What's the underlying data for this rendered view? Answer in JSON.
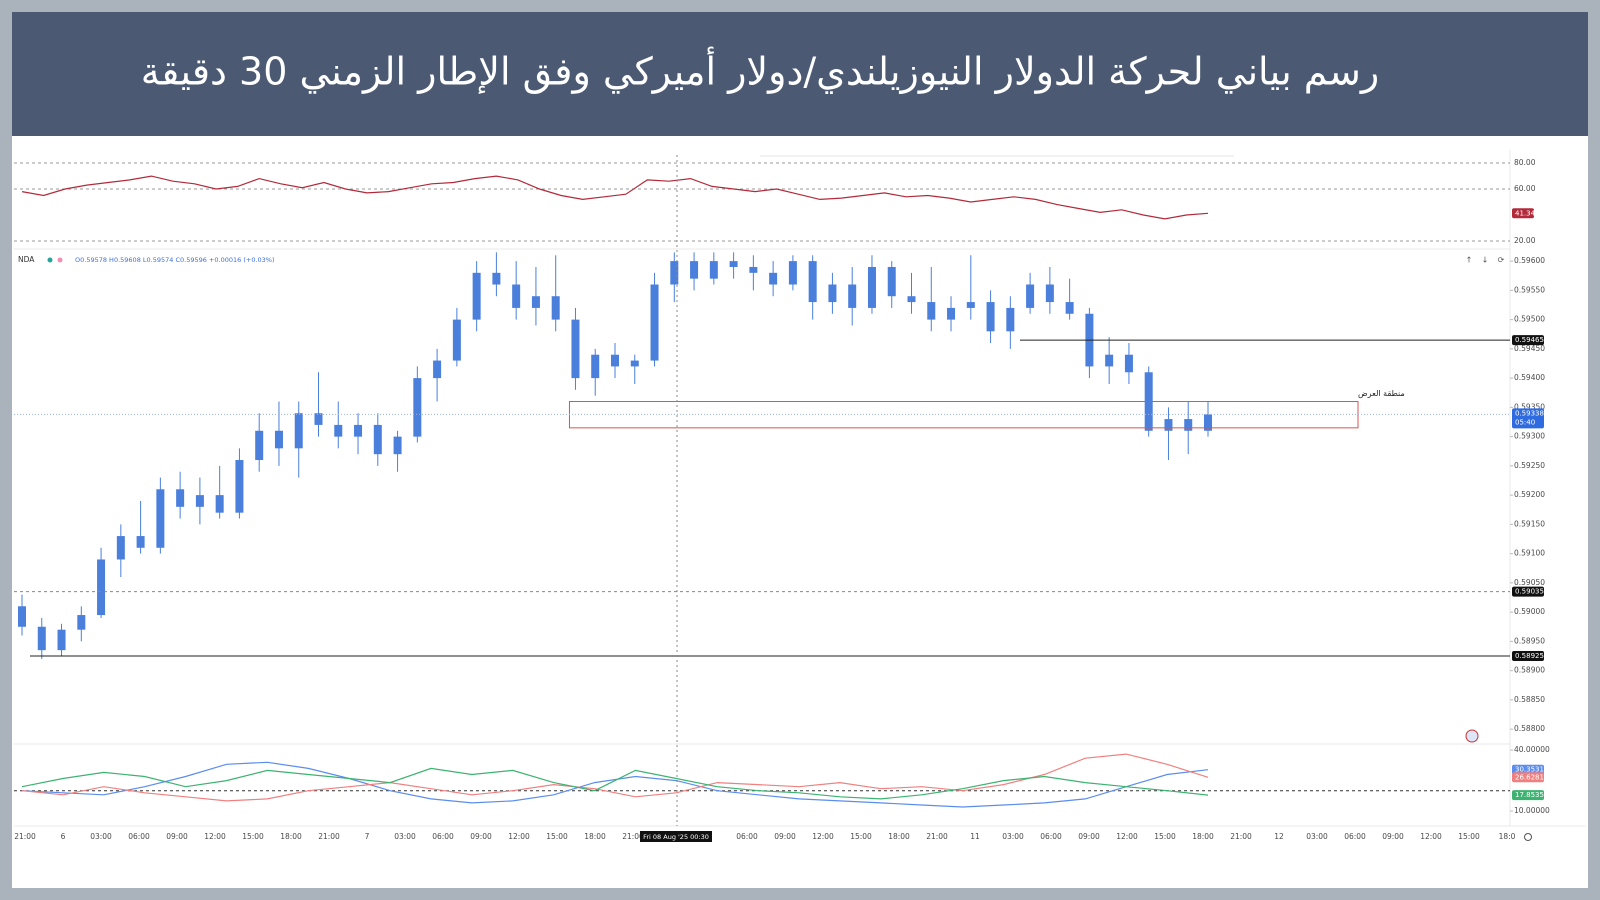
{
  "chart_data": {
    "type": "candlestick",
    "title": "رسم بياني لحركة الدولار النيوزيلندي/دولار أميركي وفق الإطار الزمني 30 دقيقة",
    "symbol": "NDA",
    "ohlc_legend": "O0.59578 H0.59608 L0.59574 C0.59596 +0.00016 (+0.03%)",
    "color": "#4a7fdc",
    "candles": [
      [
        0.5901,
        0.5903,
        0.5896,
        0.58975
      ],
      [
        0.58975,
        0.5899,
        0.5892,
        0.58935
      ],
      [
        0.58935,
        0.5898,
        0.58925,
        0.5897
      ],
      [
        0.5897,
        0.5901,
        0.5895,
        0.58995
      ],
      [
        0.58995,
        0.5911,
        0.5899,
        0.5909
      ],
      [
        0.5909,
        0.5915,
        0.5906,
        0.5913
      ],
      [
        0.5913,
        0.5919,
        0.591,
        0.5911
      ],
      [
        0.5911,
        0.5923,
        0.591,
        0.5921
      ],
      [
        0.5921,
        0.5924,
        0.5916,
        0.5918
      ],
      [
        0.5918,
        0.5923,
        0.5915,
        0.592
      ],
      [
        0.592,
        0.5925,
        0.5916,
        0.5917
      ],
      [
        0.5917,
        0.5928,
        0.5916,
        0.5926
      ],
      [
        0.5926,
        0.5934,
        0.5924,
        0.5931
      ],
      [
        0.5931,
        0.5936,
        0.5925,
        0.5928
      ],
      [
        0.5928,
        0.5936,
        0.5923,
        0.5934
      ],
      [
        0.5934,
        0.5941,
        0.593,
        0.5932
      ],
      [
        0.5932,
        0.5936,
        0.5928,
        0.593
      ],
      [
        0.593,
        0.5934,
        0.5927,
        0.5932
      ],
      [
        0.5932,
        0.5934,
        0.5925,
        0.5927
      ],
      [
        0.5927,
        0.5931,
        0.5924,
        0.593
      ],
      [
        0.593,
        0.5942,
        0.5929,
        0.594
      ],
      [
        0.594,
        0.5945,
        0.5936,
        0.5943
      ],
      [
        0.5943,
        0.5952,
        0.5942,
        0.595
      ],
      [
        0.595,
        0.596,
        0.5948,
        0.5958
      ],
      [
        0.5958,
        0.59615,
        0.5954,
        0.5956
      ],
      [
        0.5956,
        0.596,
        0.595,
        0.5952
      ],
      [
        0.5952,
        0.5959,
        0.5949,
        0.5954
      ],
      [
        0.5954,
        0.5961,
        0.5948,
        0.595
      ],
      [
        0.595,
        0.5952,
        0.5938,
        0.594
      ],
      [
        0.594,
        0.5945,
        0.5937,
        0.5944
      ],
      [
        0.5944,
        0.5946,
        0.594,
        0.5942
      ],
      [
        0.5942,
        0.5944,
        0.5939,
        0.5943
      ],
      [
        0.5943,
        0.5958,
        0.5942,
        0.5956
      ],
      [
        0.5956,
        0.59615,
        0.5953,
        0.596
      ],
      [
        0.596,
        0.59615,
        0.5955,
        0.5957
      ],
      [
        0.5957,
        0.59615,
        0.5956,
        0.596
      ],
      [
        0.596,
        0.59615,
        0.5957,
        0.5959
      ],
      [
        0.5959,
        0.5961,
        0.5955,
        0.5958
      ],
      [
        0.5958,
        0.596,
        0.5954,
        0.5956
      ],
      [
        0.5956,
        0.5961,
        0.5955,
        0.596
      ],
      [
        0.596,
        0.5961,
        0.595,
        0.5953
      ],
      [
        0.5953,
        0.5958,
        0.5951,
        0.5956
      ],
      [
        0.5956,
        0.5959,
        0.5949,
        0.5952
      ],
      [
        0.5952,
        0.5961,
        0.5951,
        0.5959
      ],
      [
        0.5959,
        0.596,
        0.5952,
        0.5954
      ],
      [
        0.5954,
        0.5958,
        0.5951,
        0.5953
      ],
      [
        0.5953,
        0.5959,
        0.5948,
        0.595
      ],
      [
        0.595,
        0.5954,
        0.5948,
        0.5952
      ],
      [
        0.5952,
        0.5961,
        0.595,
        0.5953
      ],
      [
        0.5953,
        0.5955,
        0.5946,
        0.5948
      ],
      [
        0.5948,
        0.5954,
        0.5945,
        0.5952
      ],
      [
        0.5952,
        0.5958,
        0.5951,
        0.5956
      ],
      [
        0.5956,
        0.5959,
        0.5951,
        0.5953
      ],
      [
        0.5953,
        0.5957,
        0.595,
        0.5951
      ],
      [
        0.5951,
        0.5952,
        0.594,
        0.5942
      ],
      [
        0.5942,
        0.5947,
        0.5939,
        0.5944
      ],
      [
        0.5944,
        0.5946,
        0.5939,
        0.5941
      ],
      [
        0.5941,
        0.5942,
        0.593,
        0.5931
      ],
      [
        0.5931,
        0.5935,
        0.5926,
        0.5933
      ],
      [
        0.5933,
        0.5936,
        0.5927,
        0.5931
      ],
      [
        0.5931,
        0.5936,
        0.593,
        0.59338
      ]
    ],
    "ylim": [
      0.58778,
      0.59619
    ],
    "yticks": [
      {
        "value": 0.596,
        "label": "0.59600"
      },
      {
        "value": 0.5955,
        "label": "0.59550"
      },
      {
        "value": 0.595,
        "label": "0.59500"
      },
      {
        "value": 0.5945,
        "label": "0.59450"
      },
      {
        "value": 0.594,
        "label": "0.59400"
      },
      {
        "value": 0.5935,
        "label": "0.59350"
      },
      {
        "value": 0.593,
        "label": "0.59300"
      },
      {
        "value": 0.5925,
        "label": "0.59250"
      },
      {
        "value": 0.592,
        "label": "0.59200"
      },
      {
        "value": 0.5915,
        "label": "0.59150"
      },
      {
        "value": 0.591,
        "label": "0.59100"
      },
      {
        "value": 0.5905,
        "label": "0.59050"
      },
      {
        "value": 0.59,
        "label": "0.59000"
      },
      {
        "value": 0.5895,
        "label": "0.58950"
      },
      {
        "value": 0.589,
        "label": "0.58900"
      },
      {
        "value": 0.5885,
        "label": "0.58850"
      },
      {
        "value": 0.588,
        "label": "0.58800"
      }
    ],
    "levels": [
      {
        "value": 0.59465,
        "style": "solid"
      },
      {
        "value": 0.59035,
        "style": "dashed"
      },
      {
        "value": 0.58925,
        "style": "solid"
      }
    ],
    "zone": {
      "top": 0.5936,
      "bottom": 0.59315,
      "label": "منطقة العرض",
      "color": "#d9534f"
    },
    "current_price": 0.59338,
    "countdown": "05:40",
    "xticks": [
      "21:00",
      "6",
      "03:00",
      "06:00",
      "09:00",
      "12:00",
      "15:00",
      "18:00",
      "21:00",
      "7",
      "03:00",
      "06:00",
      "09:00",
      "12:00",
      "15:00",
      "18:00",
      "21:00",
      null,
      null,
      "06:00",
      "09:00",
      "12:00",
      "15:00",
      "18:00",
      "21:00",
      "11",
      "03:00",
      "06:00",
      "09:00",
      "12:00",
      "15:00",
      "18:00",
      "21:00",
      "12",
      "03:00",
      "06:00",
      "09:00",
      "12:00",
      "15:00",
      "18:0"
    ],
    "crosshair_label": "Fri 08 Aug '25   00:30",
    "rsi": {
      "color": "#b22a3a",
      "ylim": [
        15.4,
        86.2
      ],
      "yticks": [
        {
          "value": 80,
          "label": "80.00"
        },
        {
          "value": 60,
          "label": "60.00"
        },
        {
          "value": 20,
          "label": "20.00"
        }
      ],
      "values": [
        58,
        55,
        60,
        63,
        65,
        67,
        70,
        66,
        64,
        60,
        62,
        68,
        64,
        61,
        65,
        60,
        57,
        58,
        61,
        64,
        65,
        68,
        70,
        67,
        60,
        55,
        52,
        54,
        56,
        67,
        66,
        68,
        62,
        60,
        58,
        60,
        56,
        52,
        53,
        55,
        57,
        54,
        55,
        53,
        50,
        52,
        54,
        52,
        48,
        45,
        42,
        44,
        40,
        37,
        40,
        41.34
      ]
    },
    "dmi": {
      "ylim": [
        5.6,
        42.5
      ],
      "yticks": [
        {
          "value": 40,
          "label": "40.00000"
        },
        {
          "value": 10,
          "label": "10.00000"
        }
      ],
      "dashed_level": 20,
      "series": [
        {
          "color": "#5b8def",
          "values": [
            20,
            19,
            18,
            22,
            27,
            33,
            34,
            31,
            26,
            20,
            16,
            14,
            15,
            18,
            24,
            27,
            25,
            20,
            18,
            16,
            15,
            14,
            13,
            12,
            13,
            14,
            16,
            22,
            28,
            30.35314
          ]
        },
        {
          "color": "#f08080",
          "values": [
            20,
            18,
            22,
            19,
            17,
            15,
            16,
            20,
            22,
            24,
            21,
            18,
            20,
            23,
            21,
            17,
            19,
            24,
            23,
            22,
            24,
            21,
            22,
            20,
            23,
            28,
            36,
            38,
            33,
            26.62811
          ]
        },
        {
          "color": "#3cb371",
          "values": [
            22,
            26,
            29,
            27,
            22,
            25,
            30,
            28,
            26,
            24,
            31,
            28,
            30,
            24,
            20,
            30,
            26,
            22,
            20,
            19,
            17,
            16,
            18,
            21,
            25,
            27,
            24,
            22,
            20,
            17.85359
          ]
        }
      ]
    }
  }
}
